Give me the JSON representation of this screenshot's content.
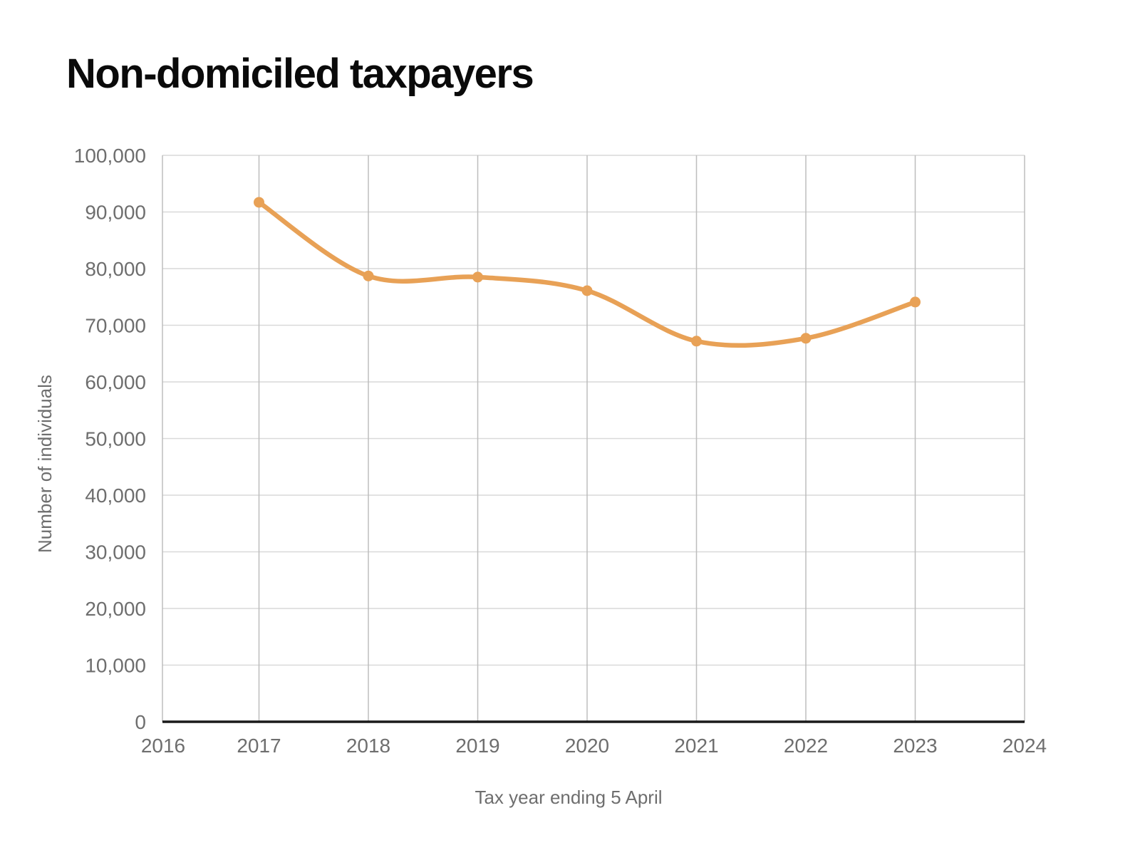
{
  "title": "Non-domiciled taxpayers",
  "chart_data": {
    "type": "line",
    "title": "Non-domiciled taxpayers",
    "xlabel": "Tax year ending 5 April",
    "ylabel": "Number of individuals",
    "series": [
      {
        "name": "Non-domiciled taxpayers",
        "x": [
          2017,
          2018,
          2019,
          2020,
          2021,
          2022,
          2023
        ],
        "values": [
          91700,
          78700,
          78500,
          76100,
          67200,
          67700,
          74100
        ]
      }
    ],
    "xlim": [
      2016,
      2024
    ],
    "ylim": [
      0,
      100000
    ],
    "x_tick_labels": [
      "2016",
      "2017",
      "2018",
      "2019",
      "2020",
      "2021",
      "2022",
      "2023",
      "2024"
    ],
    "y_ticks": [
      0,
      10000,
      20000,
      30000,
      40000,
      50000,
      60000,
      70000,
      80000,
      90000,
      100000
    ],
    "y_tick_labels": [
      "0",
      "10,000",
      "20,000",
      "30,000",
      "40,000",
      "50,000",
      "60,000",
      "70,000",
      "80,000",
      "90,000",
      "100,000"
    ],
    "grid": true,
    "legend": "none",
    "marker": "circle"
  },
  "colors": {
    "line": "#e8a156",
    "marker": "#e8a156",
    "title_text": "#0a0a0a",
    "tick_text": "#6e6e6e",
    "h_gridline": "#d9d9d9",
    "v_gridline": "#bdbdbd",
    "axis_line": "#1a1a1a",
    "background": "#ffffff"
  }
}
